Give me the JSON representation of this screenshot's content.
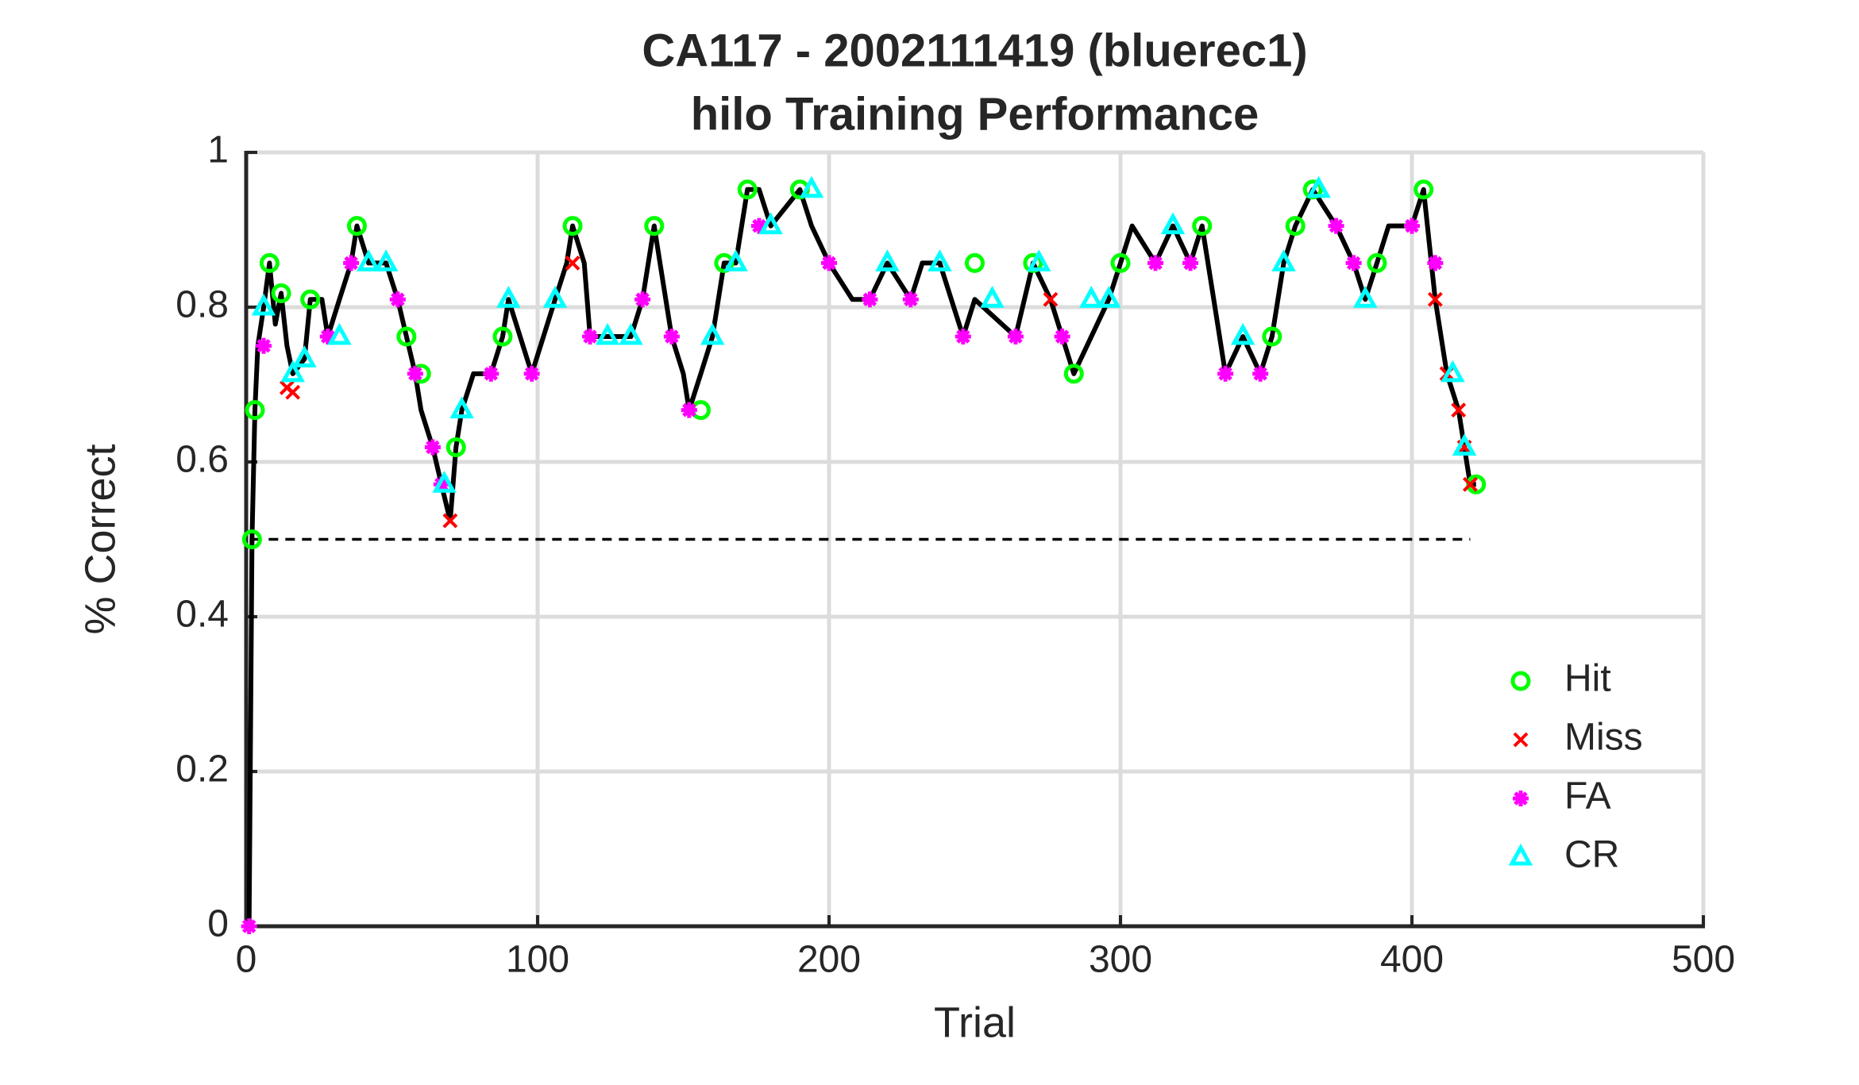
{
  "chart_data": {
    "type": "line",
    "title": [
      "CA117 - 2002111419 (bluerec1)",
      "hilo Training Performance"
    ],
    "x_label": "Trial",
    "y_label": "% Correct",
    "xlim": [
      0,
      500
    ],
    "xticks": [
      0,
      100,
      200,
      300,
      400,
      500
    ],
    "ylim": [
      0,
      1
    ],
    "yticks": [
      0,
      0.2,
      0.4,
      0.6,
      0.8,
      1
    ],
    "grid": true,
    "legend": "right",
    "reference": {
      "value": 0.5,
      "x": [
        2,
        420
      ],
      "color": "#000000"
    },
    "line": {
      "color": "#000000",
      "x": [
        1,
        2,
        3,
        4,
        6,
        8,
        10,
        12,
        14,
        16,
        20,
        22,
        26,
        28,
        32,
        36,
        38,
        42,
        48,
        52,
        55,
        58,
        60,
        64,
        67,
        70,
        72,
        74,
        78,
        84,
        88,
        90,
        94,
        98,
        102,
        106,
        110,
        112,
        116,
        118,
        124,
        132,
        136,
        140,
        142,
        146,
        150,
        152,
        156,
        160,
        164,
        168,
        172,
        176,
        180,
        190,
        194,
        200,
        208,
        214,
        220,
        228,
        232,
        238,
        246,
        250,
        264,
        270,
        276,
        280,
        284,
        290,
        296,
        300,
        304,
        312,
        318,
        324,
        328,
        332,
        336,
        342,
        348,
        352,
        356,
        360,
        366,
        374,
        380,
        384,
        388,
        392,
        400,
        404,
        408,
        412,
        416,
        418,
        420,
        422
      ],
      "values": [
        0,
        0.5,
        0.667,
        0.75,
        0.8,
        0.857,
        0.778,
        0.818,
        0.75,
        0.714,
        0.733,
        0.81,
        0.81,
        0.762,
        0.81,
        0.857,
        0.905,
        0.857,
        0.857,
        0.81,
        0.762,
        0.714,
        0.667,
        0.619,
        0.571,
        0.524,
        0.619,
        0.667,
        0.714,
        0.714,
        0.762,
        0.81,
        0.762,
        0.714,
        0.762,
        0.81,
        0.857,
        0.905,
        0.857,
        0.762,
        0.762,
        0.762,
        0.81,
        0.905,
        0.857,
        0.762,
        0.714,
        0.667,
        0.714,
        0.762,
        0.857,
        0.857,
        0.952,
        0.952,
        0.905,
        0.952,
        0.905,
        0.857,
        0.81,
        0.81,
        0.857,
        0.81,
        0.857,
        0.857,
        0.762,
        0.81,
        0.762,
        0.857,
        0.81,
        0.762,
        0.714,
        0.762,
        0.81,
        0.857,
        0.905,
        0.857,
        0.905,
        0.857,
        0.905,
        0.81,
        0.714,
        0.762,
        0.714,
        0.762,
        0.857,
        0.905,
        0.952,
        0.905,
        0.857,
        0.81,
        0.857,
        0.905,
        0.905,
        0.952,
        0.81,
        0.714,
        0.667,
        0.619,
        0.571,
        0.571
      ]
    },
    "series": [
      {
        "name": "Hit",
        "color": "#00ff00",
        "marker": "circle",
        "x": [
          2,
          3,
          8,
          12,
          22,
          38,
          55,
          60,
          72,
          88,
          112,
          140,
          156,
          164,
          172,
          190,
          250,
          270,
          284,
          300,
          328,
          352,
          360,
          366,
          388,
          404,
          422
        ],
        "values": [
          0.5,
          0.667,
          0.857,
          0.818,
          0.81,
          0.905,
          0.762,
          0.714,
          0.619,
          0.762,
          0.905,
          0.905,
          0.667,
          0.857,
          0.952,
          0.952,
          0.857,
          0.857,
          0.714,
          0.857,
          0.905,
          0.762,
          0.905,
          0.952,
          0.857,
          0.952,
          0.571
        ]
      },
      {
        "name": "Miss",
        "color": "#ff0000",
        "marker": "x",
        "x": [
          14,
          16,
          70,
          112,
          276,
          408,
          412,
          416,
          418,
          420
        ],
        "values": [
          0.696,
          0.69,
          0.524,
          0.857,
          0.81,
          0.81,
          0.714,
          0.667,
          0.619,
          0.571
        ]
      },
      {
        "name": "FA",
        "color": "#ff00ff",
        "marker": "asterisk",
        "x": [
          1,
          6,
          28,
          36,
          52,
          58,
          64,
          67,
          84,
          98,
          118,
          136,
          146,
          152,
          176,
          200,
          214,
          228,
          246,
          264,
          280,
          312,
          324,
          336,
          348,
          374,
          380,
          400,
          408
        ],
        "values": [
          0,
          0.75,
          0.762,
          0.857,
          0.81,
          0.714,
          0.619,
          0.571,
          0.714,
          0.714,
          0.762,
          0.81,
          0.762,
          0.667,
          0.905,
          0.857,
          0.81,
          0.81,
          0.762,
          0.762,
          0.762,
          0.857,
          0.857,
          0.714,
          0.714,
          0.905,
          0.857,
          0.905,
          0.857
        ]
      },
      {
        "name": "CR",
        "color": "#00ffff",
        "marker": "triangle",
        "x": [
          6,
          16,
          20,
          32,
          42,
          48,
          68,
          74,
          90,
          106,
          124,
          132,
          160,
          168,
          180,
          194,
          220,
          238,
          256,
          272,
          290,
          296,
          318,
          342,
          356,
          368,
          384,
          414,
          418
        ],
        "values": [
          0.8,
          0.714,
          0.733,
          0.762,
          0.857,
          0.857,
          0.571,
          0.667,
          0.81,
          0.81,
          0.762,
          0.762,
          0.762,
          0.857,
          0.905,
          0.952,
          0.857,
          0.857,
          0.81,
          0.857,
          0.81,
          0.81,
          0.905,
          0.762,
          0.857,
          0.952,
          0.81,
          0.714,
          0.619
        ]
      }
    ]
  }
}
